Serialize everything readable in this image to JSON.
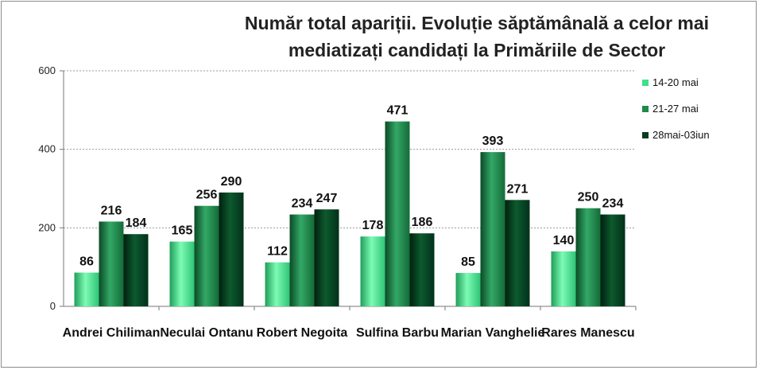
{
  "chart_data": {
    "type": "bar",
    "title_lines": [
      "Număr total apariții. Evoluție săptămânală a celor mai",
      "mediatizați candidați la Primăriile de Sector"
    ],
    "categories": [
      "Andrei Chiliman",
      "Neculai Ontanu",
      "Robert Negoita",
      "Sulfina Barbu",
      "Marian Vanghelie",
      "Rares Manescu"
    ],
    "series": [
      {
        "name": "14-20 mai",
        "values": [
          86,
          165,
          112,
          178,
          85,
          140
        ],
        "color": "#3fe08a"
      },
      {
        "name": "21-27 mai",
        "values": [
          216,
          256,
          234,
          471,
          393,
          250
        ],
        "color": "#1f8a4c"
      },
      {
        "name": "28mai-03iun",
        "values": [
          184,
          290,
          247,
          186,
          271,
          234
        ],
        "color": "#063d1e"
      }
    ],
    "ylim": [
      0,
      600
    ],
    "yticks": [
      0,
      200,
      400,
      600
    ],
    "grid": true,
    "legend_position": "top-right"
  }
}
